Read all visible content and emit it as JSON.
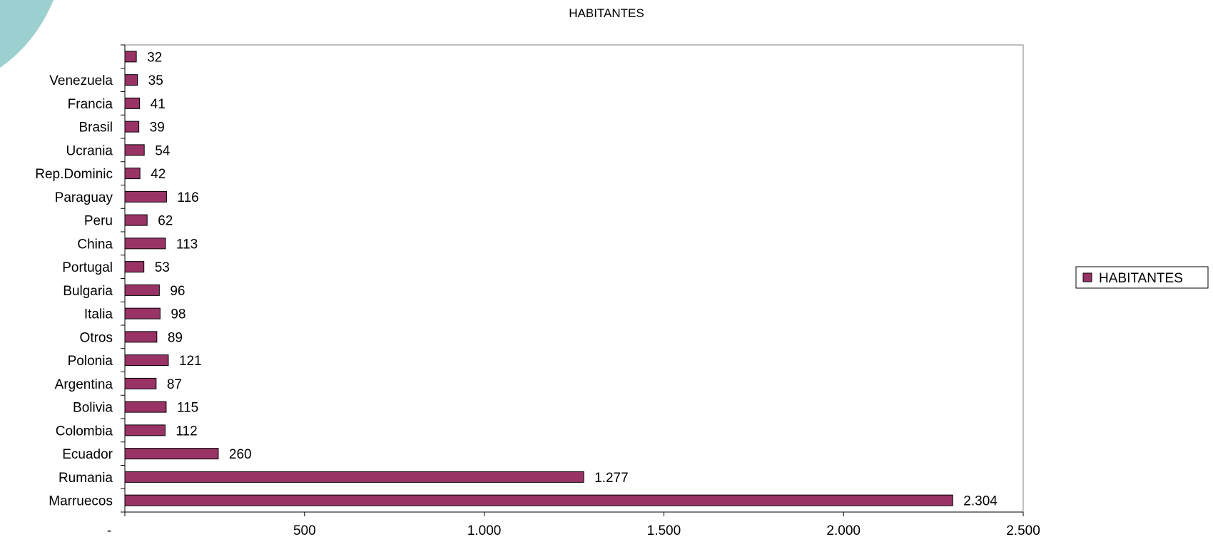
{
  "colors": {
    "bar_fill": "#993366",
    "bar_stroke": "#000000",
    "decor": "#9ccfd0"
  },
  "chart_data": {
    "type": "bar",
    "orientation": "horizontal",
    "title": "HABITANTES",
    "categories": [
      "Marruecos",
      "Rumania",
      "Ecuador",
      "Colombia",
      "Bolivia",
      "Argentina",
      "Polonia",
      "Otros",
      "Italia",
      "Bulgaria",
      "Portugal",
      "China",
      "Peru",
      "Paraguay",
      "Rep.Dominic",
      "Ucrania",
      "Brasil",
      "Francia",
      "Venezuela",
      ""
    ],
    "series": [
      {
        "name": "HABITANTES",
        "values": [
          2304,
          1277,
          260,
          112,
          115,
          87,
          121,
          89,
          98,
          96,
          53,
          113,
          62,
          116,
          42,
          54,
          39,
          41,
          35,
          32
        ],
        "value_labels": [
          "2.304",
          "1.277",
          "260",
          "112",
          "115",
          "87",
          "121",
          "89",
          "98",
          "96",
          "53",
          "113",
          "62",
          "116",
          "42",
          "54",
          "39",
          "41",
          "35",
          "32"
        ]
      }
    ],
    "x_ticks": [
      0,
      500,
      1000,
      1500,
      2000,
      2500
    ],
    "x_tick_labels": [
      "-",
      "500",
      "1.000",
      "1.500",
      "2.000",
      "2.500"
    ],
    "xlim": [
      0,
      2500
    ],
    "grid": false,
    "legend": {
      "position": "right",
      "entries": [
        "HABITANTES"
      ]
    }
  }
}
